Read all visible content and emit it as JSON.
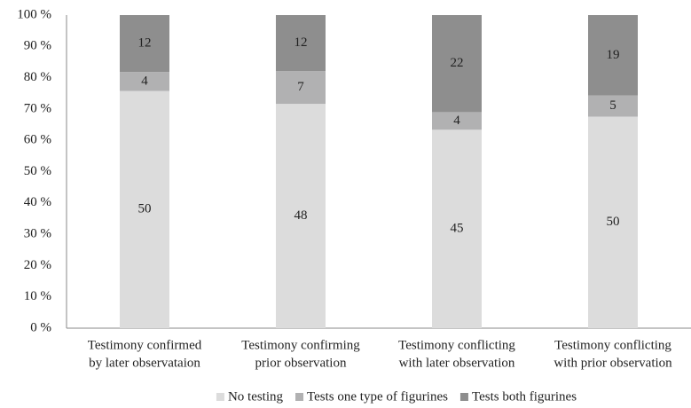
{
  "chart_data": {
    "type": "bar",
    "stacking": "percent",
    "categories": [
      [
        "Testimony confirmed",
        "by later observataion"
      ],
      [
        "Testimony confirming",
        "prior observation"
      ],
      [
        "Testimony conflicting",
        "with later observation"
      ],
      [
        "Testimony conflicting",
        "with prior observation"
      ]
    ],
    "series": [
      {
        "name": "No testing",
        "color": "#dcdcdc",
        "values": [
          50,
          48,
          45,
          50
        ]
      },
      {
        "name": "Tests one type of figurines",
        "color": "#b1b1b2",
        "values": [
          4,
          7,
          4,
          5
        ]
      },
      {
        "name": "Tests both figurines",
        "color": "#8e8e8e",
        "values": [
          12,
          12,
          22,
          19
        ]
      }
    ],
    "ylim": [
      0,
      100
    ],
    "yticks": [
      {
        "value": 0,
        "label": "0 %"
      },
      {
        "value": 10,
        "label": "10 %"
      },
      {
        "value": 20,
        "label": "20 %"
      },
      {
        "value": 30,
        "label": "30 %"
      },
      {
        "value": 40,
        "label": "40 %"
      },
      {
        "value": 50,
        "label": "50 %"
      },
      {
        "value": 60,
        "label": "60 %"
      },
      {
        "value": 70,
        "label": "70 %"
      },
      {
        "value": 80,
        "label": "80 %"
      },
      {
        "value": 90,
        "label": "90 %"
      },
      {
        "value": 100,
        "label": "100 %"
      }
    ],
    "legend": "bottom"
  }
}
